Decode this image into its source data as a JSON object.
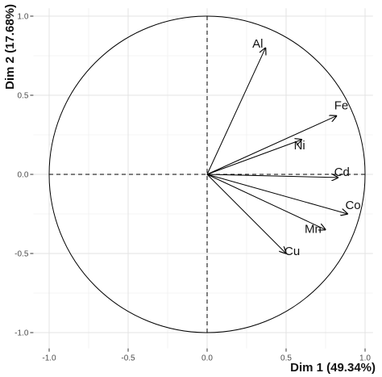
{
  "chart_data": {
    "type": "scatter",
    "subtype": "pca-variables-correlation-circle",
    "title": "",
    "xlabel": "Dim 1 (49.34%)",
    "ylabel": "Dim 2 (17.68%)",
    "xlim": [
      -1.1,
      1.05
    ],
    "ylim": [
      -1.1,
      1.05
    ],
    "x_ticks": [
      -1.0,
      -0.5,
      0.0,
      0.5,
      1.0
    ],
    "y_ticks": [
      -1.0,
      -0.5,
      0.0,
      0.5,
      1.0
    ],
    "x_tick_labels": [
      "-1.0",
      "-0.5",
      "0.0",
      "0.5",
      "1.0"
    ],
    "y_tick_labels": [
      "-1.0",
      "-0.5",
      "0.0",
      "0.5",
      "1.0"
    ],
    "grid": true,
    "unit_circle": true,
    "reference_lines": "dashed at x=0 and y=0",
    "variables": [
      {
        "name": "Al",
        "x": 0.37,
        "y": 0.8
      },
      {
        "name": "Fe",
        "x": 0.82,
        "y": 0.37
      },
      {
        "name": "Ni",
        "x": 0.6,
        "y": 0.22
      },
      {
        "name": "Cd",
        "x": 0.83,
        "y": -0.02
      },
      {
        "name": "Co",
        "x": 0.89,
        "y": -0.25
      },
      {
        "name": "Mn",
        "x": 0.75,
        "y": -0.35
      },
      {
        "name": "Cu",
        "x": 0.5,
        "y": -0.5
      }
    ],
    "colors": {
      "arrow": "#000000",
      "grid": "#ebebeb",
      "circle": "#000000"
    }
  }
}
